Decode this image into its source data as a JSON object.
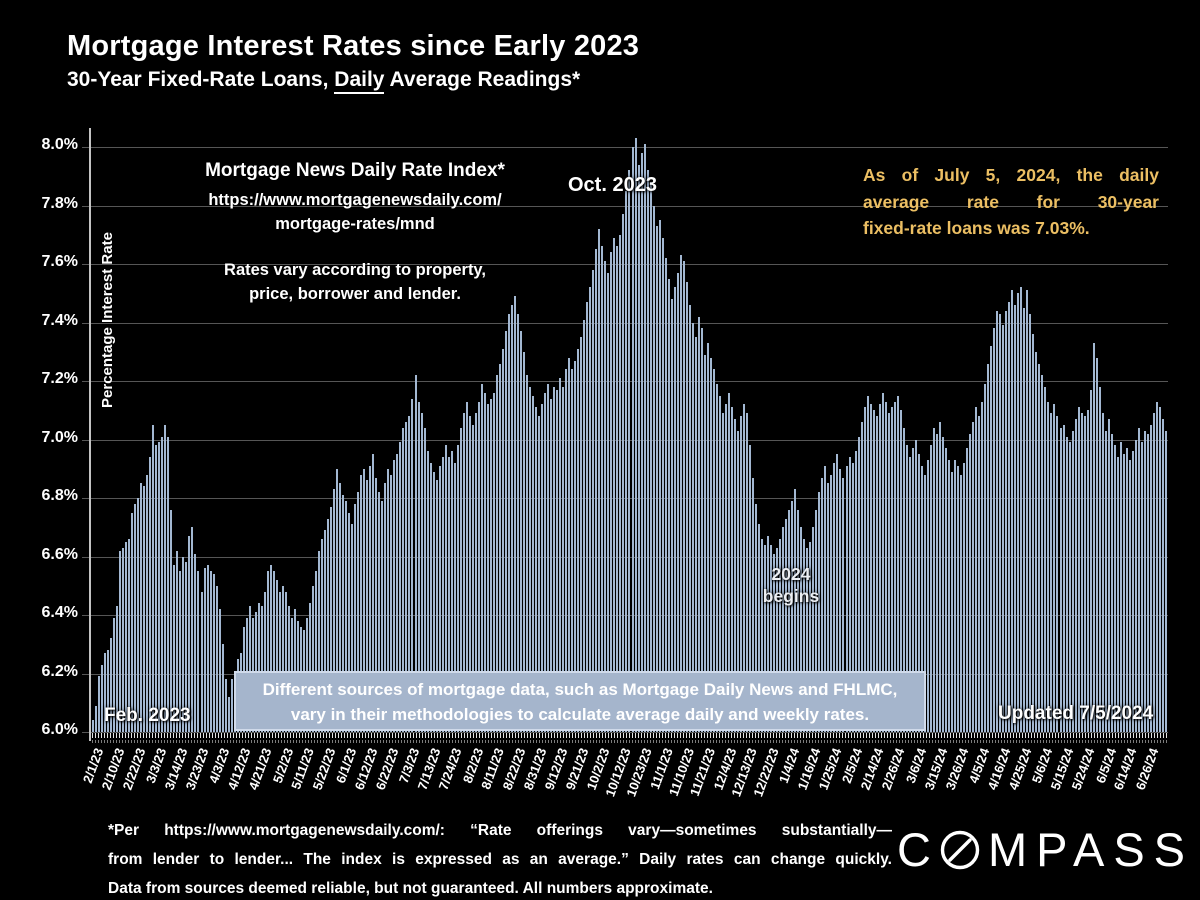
{
  "title": "Mortgage Interest Rates since Early 2023",
  "subtitle": {
    "pre": "30-Year Fixed-Rate Loans, ",
    "underlined": "Daily",
    "post": " Average Readings*"
  },
  "y_axis": {
    "title": "Percentage Interest  Rate",
    "tick_labels": [
      "8.0%",
      "7.8%",
      "7.6%",
      "7.4%",
      "7.2%",
      "7.0%",
      "6.8%",
      "6.6%",
      "6.4%",
      "6.2%",
      "6.0%"
    ]
  },
  "annotations": {
    "source_block": {
      "line1": "Mortgage News Daily Rate Index*",
      "line2": "https://www.mortgagenewsdaily.com/",
      "line3": "mortgage-rates/mnd",
      "line4": "Rates vary according to property,",
      "line5": "price, borrower and lender."
    },
    "asof_lines": [
      "As of July 5, 2024, the daily",
      "average rate for 30-year",
      "fixed-rate loans was 7.03%."
    ],
    "oct_label": "Oct. 2023",
    "feb_label": "Feb. 2023",
    "y2024_line1": "2024",
    "y2024_line2": "begins",
    "updated_label": "Updated 7/5/2024",
    "box_line1": "Different sources of mortgage data, such as Mortgage Daily News and FHLMC,",
    "box_line2": "vary in their methodologies to calculate average daily and weekly rates."
  },
  "footer": {
    "lines": [
      "*Per https://www.mortgagenewsdaily.com/: “Rate offerings vary—sometimes substantially—",
      "from lender to lender... The index is expressed as an average.” Daily rates can change quickly.",
      "Data from sources deemed reliable, but not guaranteed. All numbers approximate."
    ]
  },
  "logo": {
    "pre": "C",
    "post": "MPASS",
    "name": "COMPASS"
  },
  "colors": {
    "background": "#000000",
    "bar": "#a3b8d2",
    "accent_text": "#ecbf63",
    "box_bg": "#a5b5cc",
    "grid": "#565656"
  },
  "chart_data": {
    "type": "bar",
    "title": "Mortgage Interest Rates since Early 2023",
    "subtitle": "30-Year Fixed-Rate Loans, Daily Average Readings",
    "xlabel": "",
    "ylabel": "Percentage Interest Rate",
    "ylim": [
      6.0,
      8.0
    ],
    "y_tick_step": 0.2,
    "grid": true,
    "unit": "percent",
    "bars_per_tick": 7,
    "x_tick_labels": [
      "2/1/23",
      "2/10/23",
      "2/22/23",
      "3/3/23",
      "3/14/23",
      "3/23/23",
      "4/3/23",
      "4/12/23",
      "4/21/23",
      "5/2/23",
      "5/11/23",
      "5/22/23",
      "6/1/23",
      "6/12/23",
      "6/22/23",
      "7/3/23",
      "7/13/23",
      "7/24/23",
      "8/2/23",
      "8/11/23",
      "8/22/23",
      "8/31/23",
      "9/12/23",
      "9/21/23",
      "10/2/23",
      "10/12/23",
      "10/23/23",
      "11/1/23",
      "11/10/23",
      "11/21/23",
      "12/4/23",
      "12/13/23",
      "12/22/23",
      "1/4/24",
      "1/16/24",
      "1/25/24",
      "2/5/24",
      "2/14/24",
      "2/26/24",
      "3/6/24",
      "3/15/24",
      "3/26/24",
      "4/5/24",
      "4/16/24",
      "4/25/24",
      "5/6/24",
      "5/15/24",
      "5/24/24",
      "6/5/24",
      "6/14/24",
      "6/26/24"
    ],
    "values": [
      6.04,
      6.09,
      6.19,
      6.23,
      6.27,
      6.28,
      6.32,
      6.39,
      6.43,
      6.62,
      6.63,
      6.65,
      6.66,
      6.75,
      6.78,
      6.8,
      6.85,
      6.84,
      6.88,
      6.94,
      7.05,
      6.98,
      6.99,
      7.01,
      7.05,
      7.01,
      6.76,
      6.57,
      6.62,
      6.55,
      6.6,
      6.58,
      6.67,
      6.7,
      6.61,
      6.55,
      6.48,
      6.56,
      6.57,
      6.55,
      6.54,
      6.5,
      6.42,
      6.3,
      6.18,
      6.12,
      6.18,
      6.2,
      6.25,
      6.27,
      6.36,
      6.39,
      6.43,
      6.39,
      6.41,
      6.44,
      6.43,
      6.48,
      6.55,
      6.57,
      6.55,
      6.52,
      6.48,
      6.5,
      6.48,
      6.43,
      6.39,
      6.42,
      6.38,
      6.36,
      6.35,
      6.39,
      6.44,
      6.5,
      6.55,
      6.62,
      6.66,
      6.69,
      6.73,
      6.77,
      6.83,
      6.9,
      6.85,
      6.81,
      6.79,
      6.75,
      6.71,
      6.78,
      6.82,
      6.88,
      6.9,
      6.86,
      6.91,
      6.95,
      6.87,
      6.82,
      6.79,
      6.85,
      6.9,
      6.88,
      6.93,
      6.95,
      6.99,
      7.04,
      7.06,
      7.08,
      7.14,
      7.22,
      7.13,
      7.09,
      7.04,
      6.96,
      6.92,
      6.89,
      6.86,
      6.91,
      6.94,
      6.98,
      6.94,
      6.96,
      6.92,
      6.98,
      7.04,
      7.09,
      7.13,
      7.08,
      7.05,
      7.09,
      7.13,
      7.19,
      7.16,
      7.12,
      7.14,
      7.16,
      7.22,
      7.26,
      7.31,
      7.37,
      7.43,
      7.46,
      7.49,
      7.43,
      7.37,
      7.3,
      7.22,
      7.18,
      7.15,
      7.11,
      7.08,
      7.12,
      7.16,
      7.19,
      7.14,
      7.18,
      7.17,
      7.21,
      7.18,
      7.24,
      7.28,
      7.24,
      7.27,
      7.31,
      7.35,
      7.41,
      7.47,
      7.52,
      7.58,
      7.65,
      7.72,
      7.66,
      7.61,
      7.57,
      7.64,
      7.69,
      7.66,
      7.7,
      7.77,
      7.85,
      7.92,
      8.0,
      8.03,
      7.94,
      7.98,
      8.01,
      7.92,
      7.88,
      7.8,
      7.73,
      7.75,
      7.69,
      7.62,
      7.55,
      7.48,
      7.52,
      7.57,
      7.63,
      7.61,
      7.54,
      7.46,
      7.4,
      7.35,
      7.42,
      7.38,
      7.29,
      7.33,
      7.28,
      7.24,
      7.19,
      7.15,
      7.09,
      7.12,
      7.16,
      7.11,
      7.07,
      7.03,
      7.08,
      7.12,
      7.09,
      6.98,
      6.87,
      6.78,
      6.71,
      6.66,
      6.64,
      6.67,
      6.64,
      6.61,
      6.63,
      6.66,
      6.7,
      6.73,
      6.76,
      6.79,
      6.83,
      6.76,
      6.7,
      6.66,
      6.63,
      6.65,
      6.7,
      6.76,
      6.82,
      6.87,
      6.91,
      6.85,
      6.88,
      6.92,
      6.95,
      6.9,
      6.87,
      6.91,
      6.94,
      6.92,
      6.96,
      7.01,
      7.06,
      7.11,
      7.15,
      7.12,
      7.1,
      7.08,
      7.12,
      7.16,
      7.13,
      7.09,
      7.11,
      7.13,
      7.15,
      7.1,
      7.04,
      6.98,
      6.94,
      6.97,
      7.0,
      6.95,
      6.91,
      6.88,
      6.93,
      6.98,
      7.04,
      7.02,
      7.06,
      7.01,
      6.97,
      6.93,
      6.89,
      6.93,
      6.91,
      6.88,
      6.92,
      6.97,
      7.02,
      7.06,
      7.11,
      7.08,
      7.13,
      7.19,
      7.26,
      7.32,
      7.38,
      7.44,
      7.43,
      7.39,
      7.44,
      7.47,
      7.51,
      7.46,
      7.5,
      7.52,
      7.45,
      7.51,
      7.43,
      7.36,
      7.3,
      7.26,
      7.22,
      7.18,
      7.13,
      7.09,
      7.12,
      7.08,
      7.04,
      7.05,
      7.01,
      6.99,
      7.03,
      7.07,
      7.11,
      7.09,
      7.08,
      7.1,
      7.17,
      7.33,
      7.28,
      7.18,
      7.09,
      7.03,
      7.07,
      7.02,
      6.98,
      6.94,
      6.99,
      6.95,
      6.97,
      6.93,
      6.96,
      7.0,
      7.04,
      6.99,
      7.03,
      7.02,
      7.05,
      7.09,
      7.13,
      7.11,
      7.07,
      7.03
    ]
  }
}
